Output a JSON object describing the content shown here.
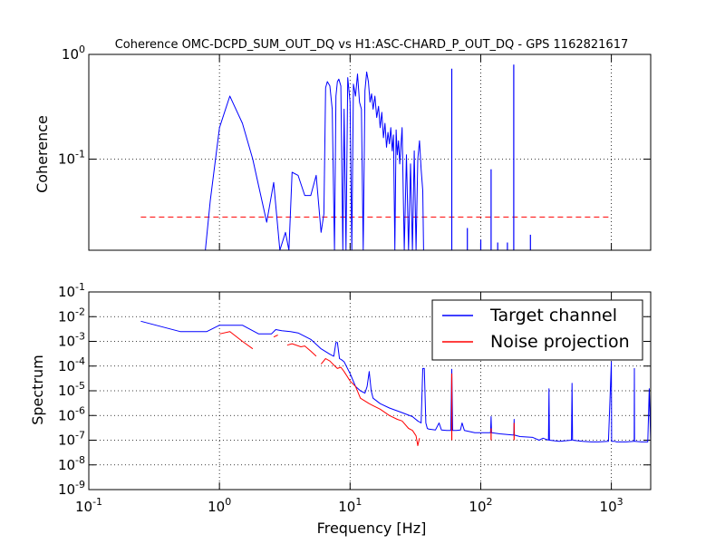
{
  "chart_data": [
    {
      "type": "line",
      "title": "Coherence OMC-DCPD_SUM_OUT_DQ vs H1:ASC-CHARD_P_OUT_DQ - GPS 1162821617",
      "xlabel": "",
      "ylabel": "Coherence",
      "xscale": "log",
      "yscale": "log",
      "xlim": [
        0.1,
        2000
      ],
      "ylim": [
        0.0135,
        1.0
      ],
      "grid": true,
      "yticks": [
        {
          "base": "10",
          "exp": "0"
        },
        {
          "base": "10",
          "exp": "-1"
        }
      ],
      "colors": {
        "coherence": "#0000ff",
        "threshold": "#ff0000"
      },
      "threshold": {
        "x": [
          0.25,
          1000
        ],
        "y": 0.028
      },
      "series": [
        {
          "color": "#0000ff",
          "x": [
            0.78,
            0.85,
            1.0,
            1.2,
            1.5,
            1.8,
            2.0,
            2.3,
            2.6,
            2.9,
            3.2,
            3.4,
            3.6,
            4.0,
            4.5,
            5.0,
            5.5,
            6.0,
            6.3,
            6.5,
            6.7,
            7.0,
            7.3,
            7.6,
            7.8,
            8.0,
            8.2,
            8.5,
            8.8,
            9.0,
            9.3,
            9.6,
            10.0,
            10.3,
            10.6,
            11.0,
            11.4,
            11.8,
            12.2,
            12.6,
            13.0,
            13.4,
            13.8,
            14.2,
            14.6,
            15.0,
            15.5,
            16.0,
            16.5,
            17.0,
            17.5,
            18.0,
            18.5,
            19.0,
            19.5,
            20.0,
            20.5,
            21.0,
            21.5,
            22.0,
            22.5,
            23.0,
            23.5,
            24.0,
            25.0,
            26.0,
            27.0,
            28.0,
            29.0,
            30.0,
            31.0,
            32.0,
            33.0,
            34.0,
            35.0,
            36.0,
            36.5
          ],
          "y": [
            0.013,
            0.04,
            0.2,
            0.4,
            0.22,
            0.1,
            0.055,
            0.025,
            0.06,
            0.013,
            0.02,
            0.013,
            0.075,
            0.07,
            0.045,
            0.045,
            0.07,
            0.02,
            0.03,
            0.48,
            0.55,
            0.5,
            0.3,
            0.013,
            0.4,
            0.55,
            0.58,
            0.5,
            0.013,
            0.3,
            0.013,
            0.6,
            0.35,
            0.013,
            0.52,
            0.4,
            0.65,
            0.35,
            0.3,
            0.013,
            0.45,
            0.68,
            0.55,
            0.35,
            0.42,
            0.3,
            0.4,
            0.25,
            0.32,
            0.2,
            0.28,
            0.16,
            0.22,
            0.13,
            0.18,
            0.14,
            0.2,
            0.12,
            0.17,
            0.013,
            0.19,
            0.11,
            0.15,
            0.09,
            0.2,
            0.013,
            0.11,
            0.013,
            0.09,
            0.013,
            0.12,
            0.013,
            0.1,
            0.15,
            0.08,
            0.05,
            0.013
          ]
        }
      ],
      "spikes": [
        {
          "x": 60,
          "y": 0.73
        },
        {
          "x": 79,
          "y": 0.022
        },
        {
          "x": 100,
          "y": 0.017
        },
        {
          "x": 120,
          "y": 0.08
        },
        {
          "x": 135,
          "y": 0.016
        },
        {
          "x": 160,
          "y": 0.016
        },
        {
          "x": 179,
          "y": 0.8
        },
        {
          "x": 240,
          "y": 0.019
        }
      ]
    },
    {
      "type": "line",
      "title": "",
      "xlabel": "Frequency [Hz]",
      "ylabel": "Spectrum",
      "xscale": "log",
      "yscale": "log",
      "xlim": [
        0.1,
        2000
      ],
      "ylim": [
        1e-09,
        0.1
      ],
      "grid": true,
      "xticks": [
        {
          "base": "10",
          "exp": "-1"
        },
        {
          "base": "10",
          "exp": "0"
        },
        {
          "base": "10",
          "exp": "1"
        },
        {
          "base": "10",
          "exp": "2"
        },
        {
          "base": "10",
          "exp": "3"
        }
      ],
      "yticks": [
        {
          "base": "10",
          "exp": "-1"
        },
        {
          "base": "10",
          "exp": "-2"
        },
        {
          "base": "10",
          "exp": "-3"
        },
        {
          "base": "10",
          "exp": "-4"
        },
        {
          "base": "10",
          "exp": "-5"
        },
        {
          "base": "10",
          "exp": "-6"
        },
        {
          "base": "10",
          "exp": "-7"
        },
        {
          "base": "10",
          "exp": "-8"
        },
        {
          "base": "10",
          "exp": "-9"
        }
      ],
      "legend_position": "top-right",
      "series": [
        {
          "name": "Target channel",
          "color": "#0000ff",
          "x": [
            0.25,
            0.5,
            0.8,
            1.0,
            1.5,
            2.0,
            2.5,
            2.7,
            3.0,
            3.5,
            4.0,
            5.0,
            6.0,
            7.0,
            7.5,
            7.8,
            8.0,
            8.3,
            8.6,
            9.0,
            10.0,
            11.0,
            12.0,
            13.0,
            13.5,
            14.0,
            14.5,
            15.0,
            17.0,
            20.0,
            25.0,
            30.0,
            33.0,
            35.0,
            36.0,
            37.0,
            38.0,
            39.0,
            40.0,
            45.0,
            48.0,
            50.0,
            55.0,
            59.0,
            60.0,
            61.0,
            65.0,
            70.0,
            72.0,
            75.0,
            90.0,
            110.0,
            119.0,
            120.0,
            121.0,
            140.0,
            160.0,
            179.0,
            180.0,
            181.0,
            200.0,
            250.0,
            280.0,
            300.0,
            330.0,
            333.0,
            336.0,
            400.0,
            495.0,
            500.0,
            505.0,
            600.0,
            700.0,
            800.0,
            950.0,
            1000.0,
            1005.0,
            1050.0,
            1100.0,
            1300.0,
            1495.0,
            1500.0,
            1505.0,
            1700.0,
            1900.0,
            1950.0,
            2000.0
          ],
          "y": [
            0.0065,
            0.0025,
            0.0025,
            0.0045,
            0.0045,
            0.002,
            0.002,
            0.003,
            0.0027,
            0.0025,
            0.0022,
            0.0012,
            0.0005,
            0.0003,
            0.00025,
            0.0009,
            0.0009,
            0.0002,
            0.00018,
            0.00015,
            5e-05,
            1.5e-05,
            1e-05,
            8e-06,
            1.5e-05,
            6e-05,
            1e-05,
            5e-06,
            3e-06,
            2e-06,
            1.3e-06,
            9e-07,
            6e-07,
            5e-07,
            8e-05,
            8e-05,
            5e-07,
            3e-07,
            2.8e-07,
            2.6e-07,
            5e-07,
            2.6e-07,
            2.5e-07,
            2.5e-07,
            7.5e-05,
            2.5e-07,
            2.5e-07,
            2.6e-07,
            5e-07,
            2.5e-07,
            2e-07,
            2e-07,
            2e-07,
            9e-07,
            2e-07,
            1.8e-07,
            1.7e-07,
            1.6e-07,
            7e-07,
            1.6e-07,
            1.4e-07,
            1.3e-07,
            1e-07,
            1.2e-07,
            1e-07,
            1.2e-05,
            1e-07,
            9e-08,
            1e-07,
            2e-05,
            1e-07,
            9e-08,
            8.5e-08,
            8.5e-08,
            9e-08,
            0.00015,
            9e-08,
            9e-08,
            8.5e-08,
            8.5e-08,
            9e-08,
            8e-05,
            9e-08,
            8.5e-08,
            8.5e-08,
            1.2e-05,
            8.5e-08
          ]
        },
        {
          "name": "Noise projection",
          "color": "#ff0000",
          "x": [
            1.0,
            1.2,
            1.5,
            1.8,
            2.2,
            2.6,
            2.8,
            3.0,
            3.3,
            3.6,
            4.2,
            4.5,
            5.0,
            5.5,
            5.8,
            6.0,
            6.5,
            7.0,
            7.5,
            8.0,
            8.5,
            9.0,
            10.0,
            11.0,
            12.0,
            14.0,
            15.0,
            17.0,
            20.0,
            23.0,
            25.0,
            28.0,
            30.0,
            32.0,
            33.0,
            34.0
          ],
          "y": [
            0.002,
            0.0025,
            0.001,
            0.0005,
            null,
            0.0015,
            0.0018,
            null,
            0.0007,
            0.0008,
            0.0006,
            0.00065,
            0.0004,
            0.00025,
            null,
            0.00012,
            0.0002,
            0.00016,
            0.00011,
            8e-05,
            9e-05,
            6e-05,
            2.5e-05,
            1.5e-05,
            5e-06,
            3e-06,
            2.5e-06,
            1.8e-06,
            1e-06,
            7e-07,
            6e-07,
            3e-07,
            2.5e-07,
            1.5e-07,
            6e-08,
            1.2e-07
          ]
        }
      ],
      "spikes": [
        {
          "x": 60,
          "y": 5e-05,
          "series": 1
        },
        {
          "x": 120,
          "y": 3e-07,
          "series": 1
        },
        {
          "x": 180,
          "y": 5e-07,
          "series": 1
        }
      ]
    }
  ]
}
